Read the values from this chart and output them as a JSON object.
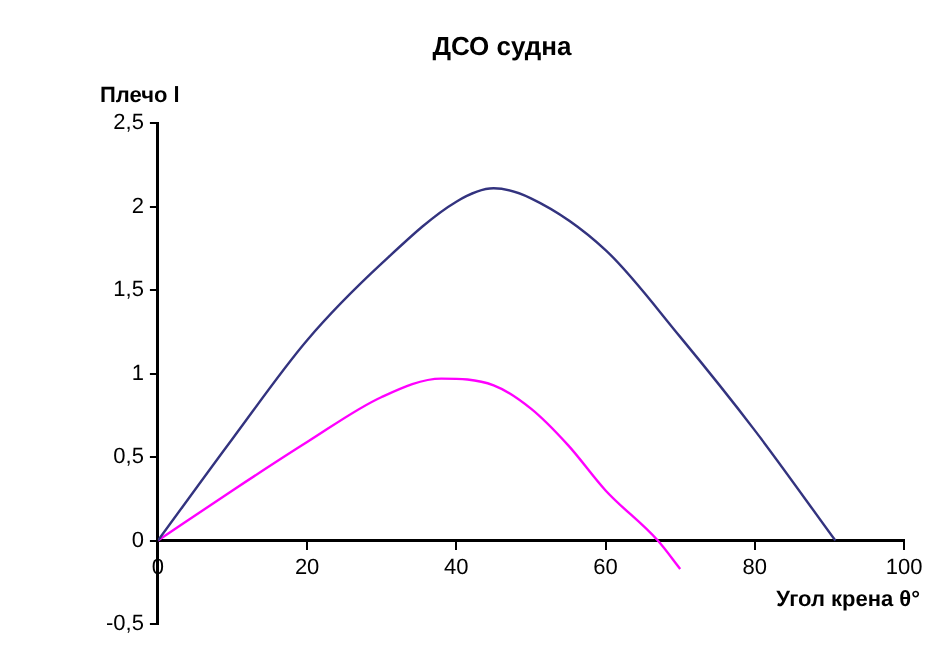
{
  "chart_data": {
    "type": "line",
    "title": "ДСО судна",
    "ylabel": "Плечо l",
    "xlabel": "Угол крена θ°",
    "xlim": [
      0,
      100
    ],
    "xticks": [
      0,
      20,
      40,
      60,
      80,
      100
    ],
    "ylim": [
      -0.5,
      2.5
    ],
    "yticks": [
      {
        "value": -0.5,
        "label": "-0,5"
      },
      0,
      {
        "value": 0.5,
        "label": "0,5"
      },
      1,
      {
        "value": 1.5,
        "label": "1,5"
      },
      2,
      {
        "value": 2.5,
        "label": "2,5"
      }
    ],
    "grid": false,
    "legend": false,
    "marker": "none",
    "line_style": "solid",
    "series": [
      {
        "color": "#33337f",
        "x": [
          0,
          10,
          20,
          30,
          40,
          45,
          50,
          60,
          70,
          80,
          90.8
        ],
        "values": [
          0,
          0.61,
          1.2,
          1.66,
          2.03,
          2.11,
          2.05,
          1.74,
          1.22,
          0.66,
          0
        ]
      },
      {
        "color": "#ff00ff",
        "x": [
          0,
          10,
          20,
          30,
          38,
          45,
          50,
          55,
          60,
          67,
          70
        ],
        "values": [
          0,
          0.3,
          0.59,
          0.86,
          0.97,
          0.93,
          0.79,
          0.57,
          0.3,
          0,
          -0.17
        ]
      }
    ]
  }
}
